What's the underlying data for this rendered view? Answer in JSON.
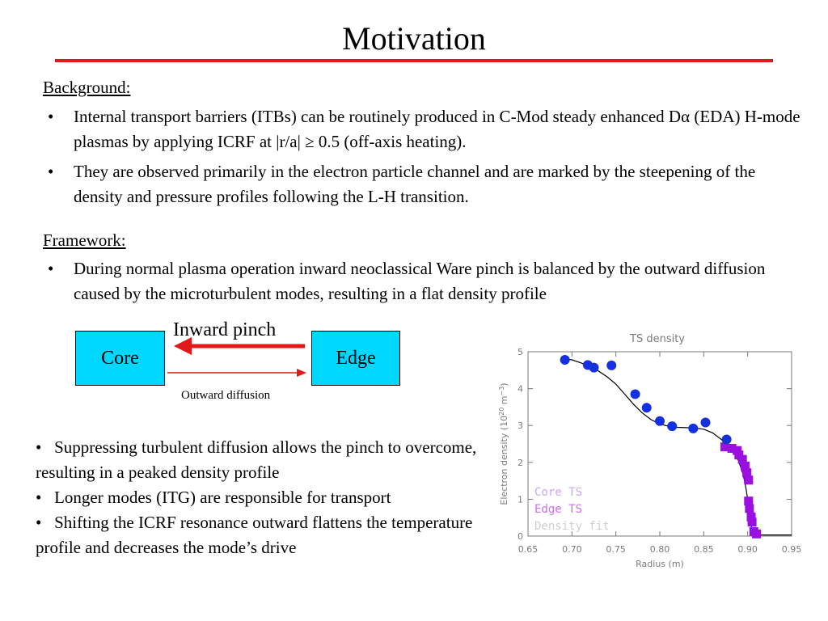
{
  "title": "Motivation",
  "background": {
    "heading": "Background:",
    "bullets": [
      "Internal transport barriers (ITBs) can be routinely produced in C-Mod steady enhanced Dα (EDA) H-mode plasmas by applying ICRF at |r/a| ≥ 0.5 (off-axis heating).",
      "They are observed primarily in the electron particle channel and are marked by the steepening of the density and pressure profiles following the L-H transition."
    ]
  },
  "framework": {
    "heading": "Framework:",
    "bullets": [
      "During normal plasma operation inward neoclassical Ware pinch is balanced by the outward diffusion caused by the microturbulent modes, resulting in a flat density profile"
    ]
  },
  "diagram": {
    "left_box": "Core",
    "right_box": "Edge",
    "top_label": "Inward pinch",
    "bottom_label": "Outward diffusion",
    "inward_color": "#e31919",
    "outward_color": "#e31919",
    "box_color": "#00d7ff"
  },
  "bottom_points": {
    "bullet_char": "•",
    "items": [
      "Suppressing turbulent diffusion allows the pinch to overcome, resulting in a peaked density profile",
      "Longer modes (ITG) are responsible for transport",
      "Shifting the ICRF resonance outward flattens the temperature profile and decreases the mode’s drive"
    ]
  },
  "chart_data": {
    "type": "scatter",
    "title": "TS density",
    "xlabel": "Radius (m)",
    "ylabel": "Electron density (10^20 m^-3)",
    "ylabel_parts": {
      "main": "Electron density (10",
      "exp": "20",
      "mid": " m",
      "exp2": "−3",
      "end": ")"
    },
    "xlim": [
      0.65,
      0.95
    ],
    "ylim": [
      0,
      5
    ],
    "xticks": [
      "0.65",
      "0.70",
      "0.75",
      "0.80",
      "0.85",
      "0.90",
      "0.95"
    ],
    "yticks": [
      "0",
      "1",
      "2",
      "3",
      "4",
      "5"
    ],
    "legend_position": "bottom-left",
    "grid": false,
    "series": [
      {
        "name": "Core TS",
        "color": "#1530e0",
        "marker": "circle",
        "points": [
          [
            0.692,
            4.78
          ],
          [
            0.718,
            4.64
          ],
          [
            0.725,
            4.57
          ],
          [
            0.745,
            4.63
          ],
          [
            0.772,
            3.85
          ],
          [
            0.785,
            3.48
          ],
          [
            0.8,
            3.12
          ],
          [
            0.814,
            2.98
          ],
          [
            0.838,
            2.92
          ],
          [
            0.852,
            3.08
          ],
          [
            0.876,
            2.62
          ]
        ]
      },
      {
        "name": "Edge TS",
        "color": "#9a10e0",
        "marker": "square",
        "points": [
          [
            0.874,
            2.42
          ],
          [
            0.882,
            2.38
          ],
          [
            0.888,
            2.32
          ],
          [
            0.89,
            2.2
          ],
          [
            0.894,
            2.08
          ],
          [
            0.897,
            1.9
          ],
          [
            0.899,
            1.72
          ],
          [
            0.901,
            1.52
          ],
          [
            0.901,
            0.95
          ],
          [
            0.902,
            0.75
          ],
          [
            0.904,
            0.52
          ],
          [
            0.905,
            0.38
          ],
          [
            0.907,
            0.12
          ],
          [
            0.91,
            0.06
          ]
        ]
      },
      {
        "name": "Density fit",
        "color": "#000000",
        "marker": "line",
        "points": [
          [
            0.69,
            4.82
          ],
          [
            0.7,
            4.78
          ],
          [
            0.71,
            4.7
          ],
          [
            0.72,
            4.6
          ],
          [
            0.73,
            4.48
          ],
          [
            0.74,
            4.32
          ],
          [
            0.75,
            4.12
          ],
          [
            0.76,
            3.85
          ],
          [
            0.77,
            3.58
          ],
          [
            0.78,
            3.34
          ],
          [
            0.79,
            3.16
          ],
          [
            0.8,
            3.04
          ],
          [
            0.81,
            2.98
          ],
          [
            0.82,
            2.95
          ],
          [
            0.83,
            2.94
          ],
          [
            0.84,
            2.93
          ],
          [
            0.85,
            2.9
          ],
          [
            0.86,
            2.8
          ],
          [
            0.87,
            2.62
          ],
          [
            0.875,
            2.52
          ],
          [
            0.88,
            2.4
          ],
          [
            0.885,
            2.24
          ],
          [
            0.89,
            2.02
          ],
          [
            0.895,
            1.66
          ],
          [
            0.898,
            1.3
          ],
          [
            0.9,
            1.0
          ],
          [
            0.902,
            0.62
          ],
          [
            0.904,
            0.28
          ],
          [
            0.906,
            0.08
          ],
          [
            0.91,
            0.03
          ],
          [
            0.95,
            0.03
          ]
        ]
      }
    ]
  }
}
